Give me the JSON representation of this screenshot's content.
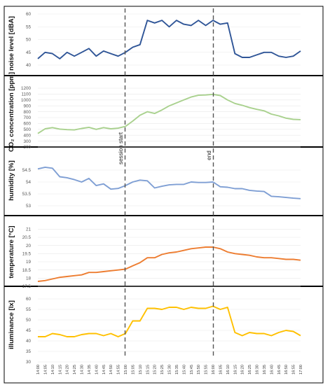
{
  "chart_data": [
    {
      "type": "line",
      "ylabel": "noise level [dBA]",
      "ylim": [
        40,
        60
      ],
      "yticks": [
        "40",
        "45",
        "50",
        "55",
        "60"
      ],
      "color": "#2f5597",
      "values": [
        42.5,
        45,
        44.5,
        42.5,
        45,
        43.5,
        45,
        46.5,
        43.5,
        45.5,
        44.5,
        43.5,
        45,
        47,
        48,
        57.5,
        56.5,
        57.5,
        55,
        57.5,
        56,
        55.5,
        57.5,
        55.5,
        57.5,
        56,
        56.5,
        44.5,
        43,
        43,
        44,
        45,
        45,
        43.5,
        43,
        43.5,
        45.5
      ]
    },
    {
      "type": "line",
      "ylabel": "CO₂ concentration [ppm]",
      "ylim": [
        200,
        1200
      ],
      "yticks": [
        "200",
        "300",
        "400",
        "500",
        "600",
        "700",
        "800",
        "900",
        "1000",
        "1100",
        "1200"
      ],
      "color": "#a9d18e",
      "values": [
        430,
        510,
        530,
        505,
        495,
        490,
        515,
        535,
        500,
        530,
        510,
        520,
        550,
        640,
        740,
        800,
        770,
        830,
        900,
        950,
        1000,
        1050,
        1080,
        1085,
        1095,
        1075,
        1000,
        940,
        910,
        870,
        840,
        815,
        760,
        730,
        690,
        670,
        665
      ]
    },
    {
      "type": "line",
      "ylabel": "humidity [%]",
      "ylim": [
        53,
        54.5
      ],
      "yticks": [
        "53",
        "53.5",
        "54",
        "54.5"
      ],
      "color": "#7f9fd4",
      "values": [
        54.55,
        54.62,
        54.58,
        54.22,
        54.18,
        54.1,
        54.0,
        54.15,
        53.85,
        53.92,
        53.7,
        53.73,
        53.85,
        54.0,
        54.08,
        54.05,
        53.75,
        53.82,
        53.88,
        53.9,
        53.9,
        54.0,
        53.98,
        53.98,
        54.0,
        53.8,
        53.78,
        53.72,
        53.72,
        53.65,
        53.62,
        53.6,
        53.4,
        53.38,
        53.35,
        53.32,
        53.3
      ]
    },
    {
      "type": "line",
      "ylabel": "temperature [°C]",
      "ylim": [
        17.5,
        20.5
      ],
      "yticks": [
        "17.5",
        "18",
        "18.5",
        "19",
        "19.5",
        "20",
        "20.5"
      ],
      "yticks_display": [
        "17.5",
        "18",
        "18.5",
        "19",
        "19.5",
        "20",
        "20.5",
        "21",
        "21.5",
        "22",
        "22.5"
      ],
      "color": "#ed7d31",
      "values": [
        17.8,
        17.85,
        17.95,
        18.05,
        18.1,
        18.15,
        18.2,
        18.35,
        18.35,
        18.4,
        18.45,
        18.5,
        18.55,
        18.75,
        18.95,
        19.25,
        19.25,
        19.45,
        19.55,
        19.6,
        19.7,
        19.8,
        19.85,
        19.9,
        19.9,
        19.8,
        19.6,
        19.5,
        19.45,
        19.4,
        19.3,
        19.25,
        19.25,
        19.2,
        19.15,
        19.15,
        19.1
      ]
    },
    {
      "type": "line",
      "ylabel": "illuminance [lx]",
      "ylim": [
        30,
        60
      ],
      "yticks": [
        "30",
        "35",
        "40",
        "45",
        "50",
        "55",
        "60"
      ],
      "color": "#ffc000",
      "values": [
        42,
        42,
        43.5,
        43,
        42,
        42,
        43,
        43.5,
        43.5,
        42.5,
        43.5,
        42,
        43.5,
        49.5,
        49.5,
        55.5,
        55.5,
        55,
        56,
        56,
        55,
        56,
        55.5,
        55.5,
        56.5,
        55,
        56,
        44,
        42.5,
        44,
        43.5,
        43.5,
        42.5,
        44,
        45,
        44.5,
        42.5
      ]
    }
  ],
  "x_ticks": [
    "14:00",
    "14:05",
    "14:10",
    "14:15",
    "14:20",
    "14:25",
    "14:30",
    "14:35",
    "14:40",
    "14:45",
    "14:50",
    "14:55",
    "15:00",
    "15:05",
    "15:10",
    "15:15",
    "15:20",
    "15:25",
    "15:30",
    "15:35",
    "15:40",
    "15:45",
    "15:50",
    "15:55",
    "16:00",
    "16:05",
    "16:10",
    "16:15",
    "16:20",
    "16:25",
    "16:30",
    "16:35",
    "16:40",
    "16:45",
    "16:50",
    "16:55",
    "17:00"
  ],
  "annotations": {
    "session_start": "session start",
    "session_end": "end"
  }
}
